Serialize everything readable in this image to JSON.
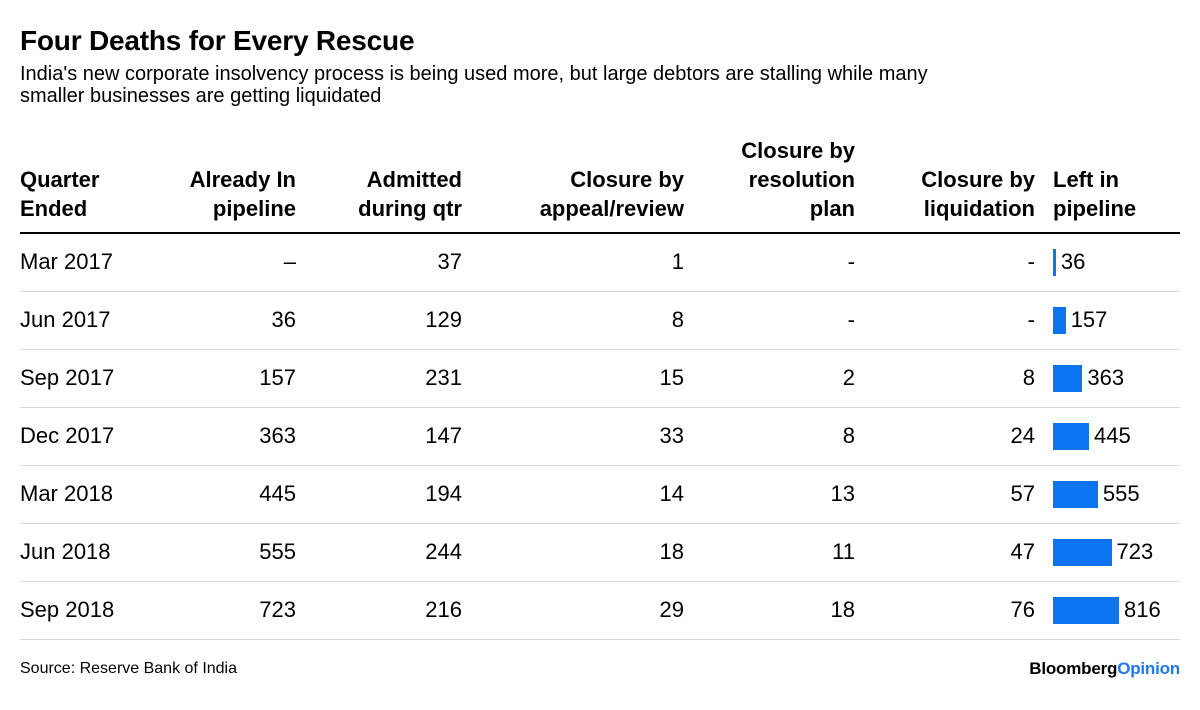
{
  "chart_data": {
    "type": "table",
    "title": "Four Deaths for Every Rescue",
    "subtitle": "India's new corporate insolvency process is being used more, but large debtors are stalling while many\nsmaller businesses are getting liquidated",
    "columns": [
      "Quarter\nEnded",
      "Already In\npipeline",
      "Admitted\nduring qtr",
      "Closure by\nappeal/review",
      "Closure by\nresolution\nplan",
      "Closure by\nliquidation",
      "Left in\npipeline"
    ],
    "column_keys": [
      "quarter-ended",
      "already-in-pipeline",
      "admitted-during-qtr",
      "closure-by-appeal-review",
      "closure-by-resolution-plan",
      "closure-by-liquidation",
      "left-in-pipeline"
    ],
    "rows": [
      {
        "cells": [
          "Mar 2017",
          "–",
          "37",
          "1",
          "-",
          "-"
        ],
        "left_in_pipeline": 36
      },
      {
        "cells": [
          "Jun 2017",
          "36",
          "129",
          "8",
          "-",
          "-"
        ],
        "left_in_pipeline": 157
      },
      {
        "cells": [
          "Sep 2017",
          "157",
          "231",
          "15",
          "2",
          "8"
        ],
        "left_in_pipeline": 363
      },
      {
        "cells": [
          "Dec 2017",
          "363",
          "147",
          "33",
          "8",
          "24"
        ],
        "left_in_pipeline": 445
      },
      {
        "cells": [
          "Mar 2018",
          "445",
          "194",
          "14",
          "13",
          "57"
        ],
        "left_in_pipeline": 555
      },
      {
        "cells": [
          "Jun 2018",
          "555",
          "244",
          "18",
          "11",
          "47"
        ],
        "left_in_pipeline": 723
      },
      {
        "cells": [
          "Sep 2018",
          "723",
          "216",
          "29",
          "18",
          "76"
        ],
        "left_in_pipeline": 816
      }
    ],
    "bar_series": "Left in pipeline",
    "bar_values": [
      36,
      157,
      363,
      445,
      555,
      723,
      816
    ],
    "bar_domain": [
      0,
      816
    ],
    "bar_color": "#0d73f0",
    "grid": "horizontal-row-separators",
    "legend": "none"
  },
  "footer": {
    "source": "Source: Reserve Bank of India",
    "logo_bloomberg": "Bloomberg",
    "logo_opinion": "Opinion",
    "logo_opinion_color": "#2178f2"
  }
}
